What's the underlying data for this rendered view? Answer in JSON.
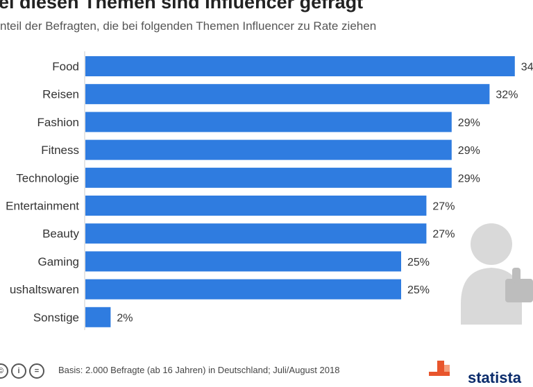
{
  "header": {
    "title": "ei diesen Themen sind Influencer gefragt",
    "subtitle": "nteil der Befragten, die bei folgenden Themen Influencer zu Rate ziehen"
  },
  "chart_data": {
    "type": "bar",
    "orientation": "horizontal",
    "categories": [
      "Food",
      "Reisen",
      "Fashion",
      "Fitness",
      "Technologie",
      "Entertainment",
      "Beauty",
      "Gaming",
      "ushaltswaren",
      "Sonstige"
    ],
    "values": [
      34,
      32,
      29,
      29,
      29,
      27,
      27,
      25,
      25,
      2
    ],
    "labels": [
      "34",
      "32%",
      "29%",
      "29%",
      "29%",
      "27%",
      "27%",
      "25%",
      "25%",
      "2%"
    ],
    "unit": "%",
    "bar_color": "#2f7ce0",
    "grid": false
  },
  "footer": {
    "source": "Basis: 2.000 Befragte (ab 16 Jahren) in Deutschland; Juli/August 2018",
    "cc_icons": [
      "cc-icon",
      "by-icon",
      "nd-icon"
    ],
    "cc_glyphs": [
      "©",
      "i",
      "="
    ],
    "brand": "statista"
  },
  "illustration": {
    "icon": "person-thumbs-up-icon",
    "color": "#d9d9d9"
  },
  "colors": {
    "accent": "#2f7ce0",
    "text": "#333333",
    "brand_orange": "#e8552c",
    "brand_navy": "#0a2b6b"
  }
}
